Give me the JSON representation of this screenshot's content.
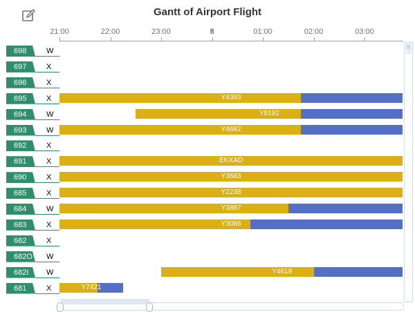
{
  "toolbar": {
    "save_icon": "save-as-image-icon"
  },
  "title": "Gantt of Airport Flight",
  "axis": {
    "ticks": [
      "21:00",
      "22:00",
      "23:00",
      "8",
      "01:00",
      "02:00",
      "03:00"
    ]
  },
  "colors": {
    "label_bg": "#2e8f6a",
    "bar_primary": "#dcaf12",
    "bar_secondary": "#5470c6",
    "axis": "#6e7079",
    "title": "#333333"
  },
  "rows": [
    {
      "id": "698",
      "kind": "W",
      "bar": null
    },
    {
      "id": "697",
      "kind": "X",
      "bar": null
    },
    {
      "id": "696",
      "kind": "X",
      "bar": null
    },
    {
      "id": "695",
      "kind": "X",
      "bar": {
        "label": "Y4393",
        "start": "21:00",
        "split": "01:45",
        "end": "03:45"
      }
    },
    {
      "id": "694",
      "kind": "W",
      "bar": {
        "label": "Y8192",
        "start": "22:30",
        "split": "01:45",
        "end": "03:45"
      }
    },
    {
      "id": "693",
      "kind": "W",
      "bar": {
        "label": "Y4682",
        "start": "21:00",
        "split": "01:45",
        "end": "03:45"
      }
    },
    {
      "id": "692",
      "kind": "X",
      "bar": null
    },
    {
      "id": "691",
      "kind": "X",
      "bar": {
        "label": "EKXAD",
        "start": "21:00",
        "split": "03:45",
        "end": "03:45"
      }
    },
    {
      "id": "690",
      "kind": "X",
      "bar": {
        "label": "Y3683",
        "start": "21:00",
        "split": "03:45",
        "end": "03:45"
      }
    },
    {
      "id": "685",
      "kind": "X",
      "bar": {
        "label": "Y2238",
        "start": "21:00",
        "split": "03:45",
        "end": "03:45"
      }
    },
    {
      "id": "684",
      "kind": "W",
      "bar": {
        "label": "Y3887",
        "start": "21:00",
        "split": "01:30",
        "end": "03:45"
      }
    },
    {
      "id": "683",
      "kind": "X",
      "bar": {
        "label": "Y3086",
        "start": "21:00",
        "split": "00:45",
        "end": "03:45"
      }
    },
    {
      "id": "682",
      "kind": "X",
      "bar": null
    },
    {
      "id": "682O",
      "kind": "W",
      "bar": null
    },
    {
      "id": "682I",
      "kind": "W",
      "bar": {
        "label": "Y4619",
        "start": "23:00",
        "split": "02:00",
        "end": "03:45"
      }
    },
    {
      "id": "681",
      "kind": "X",
      "bar": {
        "label": "Y7421",
        "start": "21:00",
        "split": "21:45",
        "end": "22:15"
      }
    }
  ]
}
